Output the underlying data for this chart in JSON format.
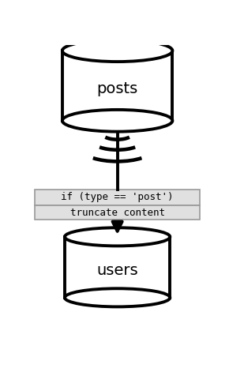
{
  "bg_color": "#ffffff",
  "line_color": "#000000",
  "box_fill": "#e0e0e0",
  "box_border": "#999999",
  "text_color": "#000000",
  "db_top_label": "posts",
  "db_bottom_label": "users",
  "filter_label": "if (type == 'post')",
  "transform_label": "truncate content",
  "fig_width": 2.9,
  "fig_height": 4.71,
  "dpi": 100
}
